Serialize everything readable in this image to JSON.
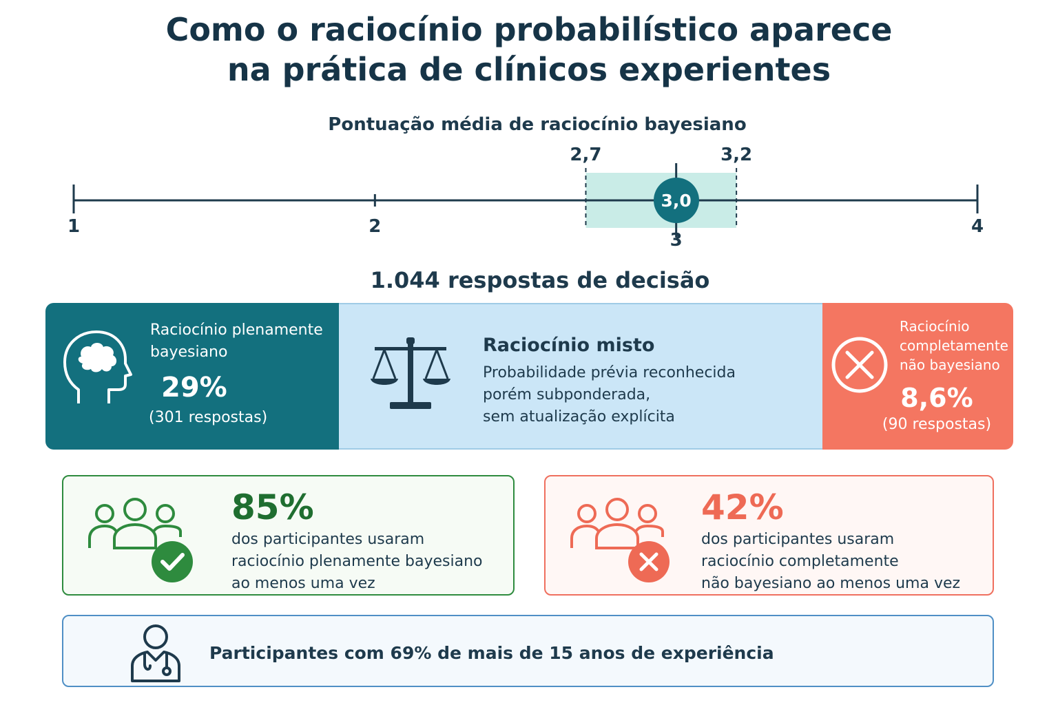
{
  "title": {
    "line1": "Como o raciocínio probabilístico aparece",
    "line2": "na prática de clínicos experientes"
  },
  "scale": {
    "title": "Pontuação média de raciocínio bayesiano",
    "min": 1,
    "max": 4,
    "ticks": [
      "1",
      "2",
      "3",
      "4"
    ],
    "tick_values": [
      1,
      2,
      3,
      4
    ],
    "ci_low": 2.7,
    "ci_high": 3.2,
    "ci_low_label": "2,7",
    "ci_high_label": "3,2",
    "mean": 3.0,
    "mean_label": "3,0",
    "colors": {
      "axis": "#1e3a4c",
      "ci_band": "#c9ece7",
      "mean": "#13707e"
    }
  },
  "responses": {
    "title": "1.044 respostas de decisão",
    "full": {
      "label": "Raciocínio plenamente bayesiano",
      "percent": "29%",
      "count": "(301 respostas)",
      "icon": "head-brain-icon",
      "color": "#13707e"
    },
    "mixed": {
      "label": "Raciocínio misto",
      "description_lines": [
        "Probabilidade prévia reconhecida",
        "porém subponderada,",
        "sem atualização explícita"
      ],
      "icon": "balance-scale-icon",
      "color": "#cbe6f7"
    },
    "non": {
      "label_lines": [
        "Raciocínio",
        "completamente",
        "não bayesiano"
      ],
      "percent": "8,6%",
      "count": "(90 respostas)",
      "icon": "circle-x-icon",
      "color": "#f47661"
    }
  },
  "stats": {
    "full_bayes": {
      "value": "85%",
      "lines": [
        "dos participantes usaram",
        "raciocínio plenamente bayesiano",
        "ao menos uma vez"
      ],
      "icon": "group-check-icon",
      "color": "#2e8b3e"
    },
    "non_bayes": {
      "value": "42%",
      "lines": [
        "dos participantes usaram",
        "raciocínio completamente",
        "não bayesiano ao menos uma vez"
      ],
      "icon": "group-x-icon",
      "color": "#ee6a55"
    },
    "experience": {
      "text": "Participantes com 69% de mais de 15 anos de experiência",
      "icon": "doctor-stethoscope-icon",
      "color": "#4f8fc5"
    }
  }
}
